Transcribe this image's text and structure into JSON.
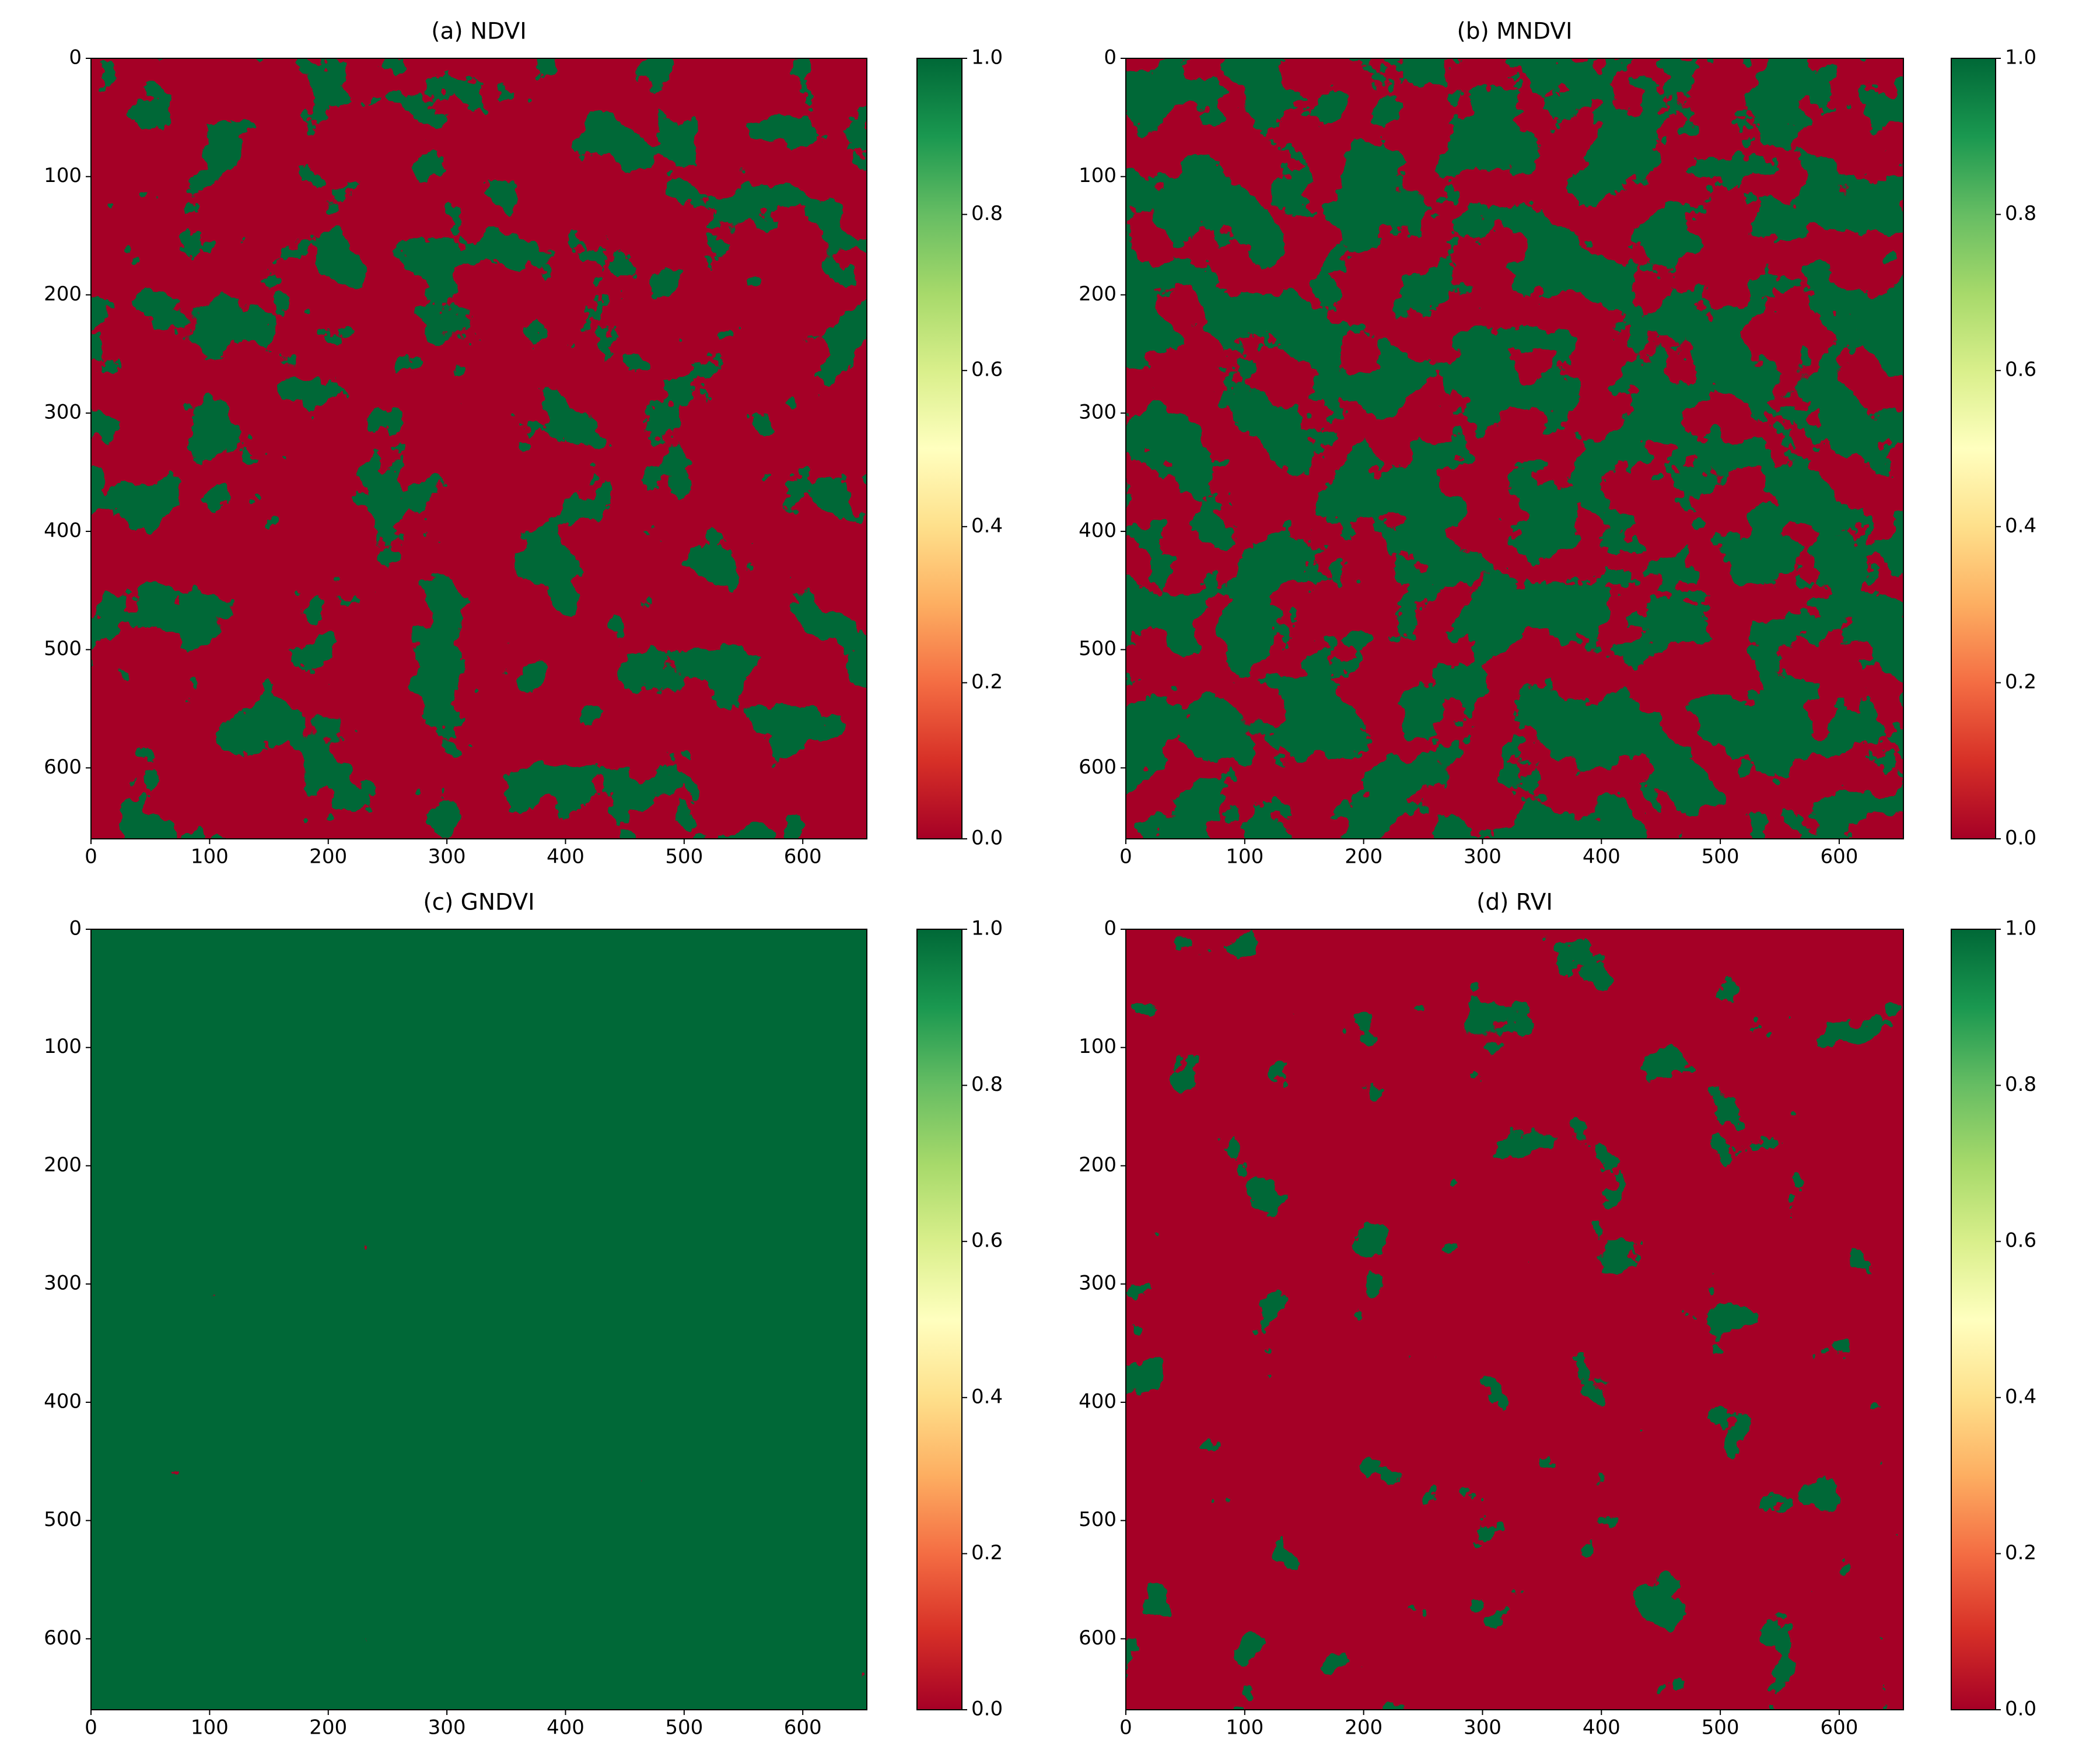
{
  "chart_data": [
    {
      "type": "image",
      "title": "(a) NDVI",
      "colormap": "RdYlGn",
      "xlim": [
        0,
        654
      ],
      "ylim": [
        660,
        0
      ],
      "xticks": [
        0,
        100,
        200,
        300,
        400,
        500,
        600
      ],
      "yticks": [
        0,
        100,
        200,
        300,
        400,
        500,
        600
      ],
      "colorbar_lim": [
        0,
        1
      ],
      "colorbar_ticks": [
        {
          "value": 0,
          "label": "0.0"
        },
        0.2,
        0.4,
        0.6,
        0.8,
        {
          "value": 1,
          "label": "1.0"
        }
      ]
    },
    {
      "type": "image",
      "title": "(b) MNDVI",
      "colormap": "RdYlGn",
      "xlim": [
        0,
        654
      ],
      "ylim": [
        660,
        0
      ],
      "xticks": [
        0,
        100,
        200,
        300,
        400,
        500,
        600
      ],
      "yticks": [
        0,
        100,
        200,
        300,
        400,
        500,
        600
      ],
      "colorbar_lim": [
        0,
        1
      ],
      "colorbar_ticks": [
        {
          "value": 0,
          "label": "0.0"
        },
        0.2,
        0.4,
        0.6,
        0.8,
        {
          "value": 1,
          "label": "1.0"
        }
      ]
    },
    {
      "type": "image",
      "title": "(c) GNDVI",
      "colormap": "RdYlGn",
      "xlim": [
        0,
        654
      ],
      "ylim": [
        660,
        0
      ],
      "xticks": [
        0,
        100,
        200,
        300,
        400,
        500,
        600
      ],
      "yticks": [
        0,
        100,
        200,
        300,
        400,
        500,
        600
      ],
      "colorbar_lim": [
        0,
        1
      ],
      "colorbar_ticks": [
        {
          "value": 0,
          "label": "0.0"
        },
        0.2,
        0.4,
        0.6,
        0.8,
        {
          "value": 1,
          "label": "1.0"
        }
      ]
    },
    {
      "type": "image",
      "title": "(d) RVI",
      "colormap": "RdYlGn",
      "xlim": [
        0,
        654
      ],
      "ylim": [
        660,
        0
      ],
      "xticks": [
        0,
        100,
        200,
        300,
        400,
        500,
        600
      ],
      "yticks": [
        0,
        100,
        200,
        300,
        400,
        500,
        600
      ],
      "colorbar_lim": [
        0,
        1
      ],
      "colorbar_ticks": [
        {
          "value": 0,
          "label": "0.0"
        },
        0.2,
        0.4,
        0.6,
        0.8,
        {
          "value": 1,
          "label": "1.0"
        }
      ]
    }
  ]
}
